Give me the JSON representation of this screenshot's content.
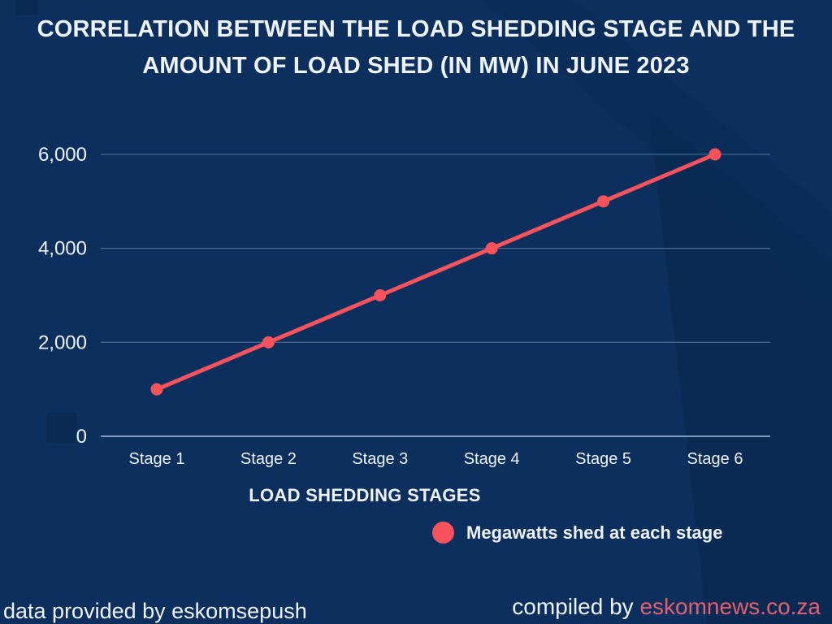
{
  "title": {
    "line1": "CORRELATION BETWEEN THE LOAD SHEDDING STAGE AND THE",
    "line2": "AMOUNT OF LOAD SHED (IN MW) IN JUNE 2023"
  },
  "chart_data": {
    "type": "line",
    "title": "CORRELATION BETWEEN THE LOAD SHEDDING STAGE AND THE AMOUNT OF LOAD SHED (IN MW) IN JUNE 2023",
    "categories": [
      "Stage 1",
      "Stage 2",
      "Stage 3",
      "Stage 4",
      "Stage 5",
      "Stage 6"
    ],
    "series": [
      {
        "name": "Megawatts shed at each stage",
        "values": [
          1000,
          2000,
          3000,
          4000,
          5000,
          6000
        ]
      }
    ],
    "xlabel": "LOAD SHEDDING STAGES",
    "ylabel": "",
    "ylim": [
      0,
      6000
    ],
    "yticks": [
      0,
      2000,
      4000,
      6000
    ],
    "ytick_labels": [
      "0",
      "2,000",
      "4,000",
      "6,000"
    ],
    "grid": true,
    "legend_position": "bottom-right",
    "line_color": "#f8535c",
    "marker": "circle"
  },
  "footer": {
    "left": "data provided by eskomsepush",
    "right_prefix": "compiled by ",
    "right_link": "eskomnews.co.za"
  },
  "colors": {
    "background": "#0c2f5e",
    "shape": "#0a2a54",
    "gridline": "#46648f",
    "axis_line": "#7f9cc0",
    "text": "#eef3f9",
    "accent": "#f8535c",
    "link": "#e2616d"
  }
}
